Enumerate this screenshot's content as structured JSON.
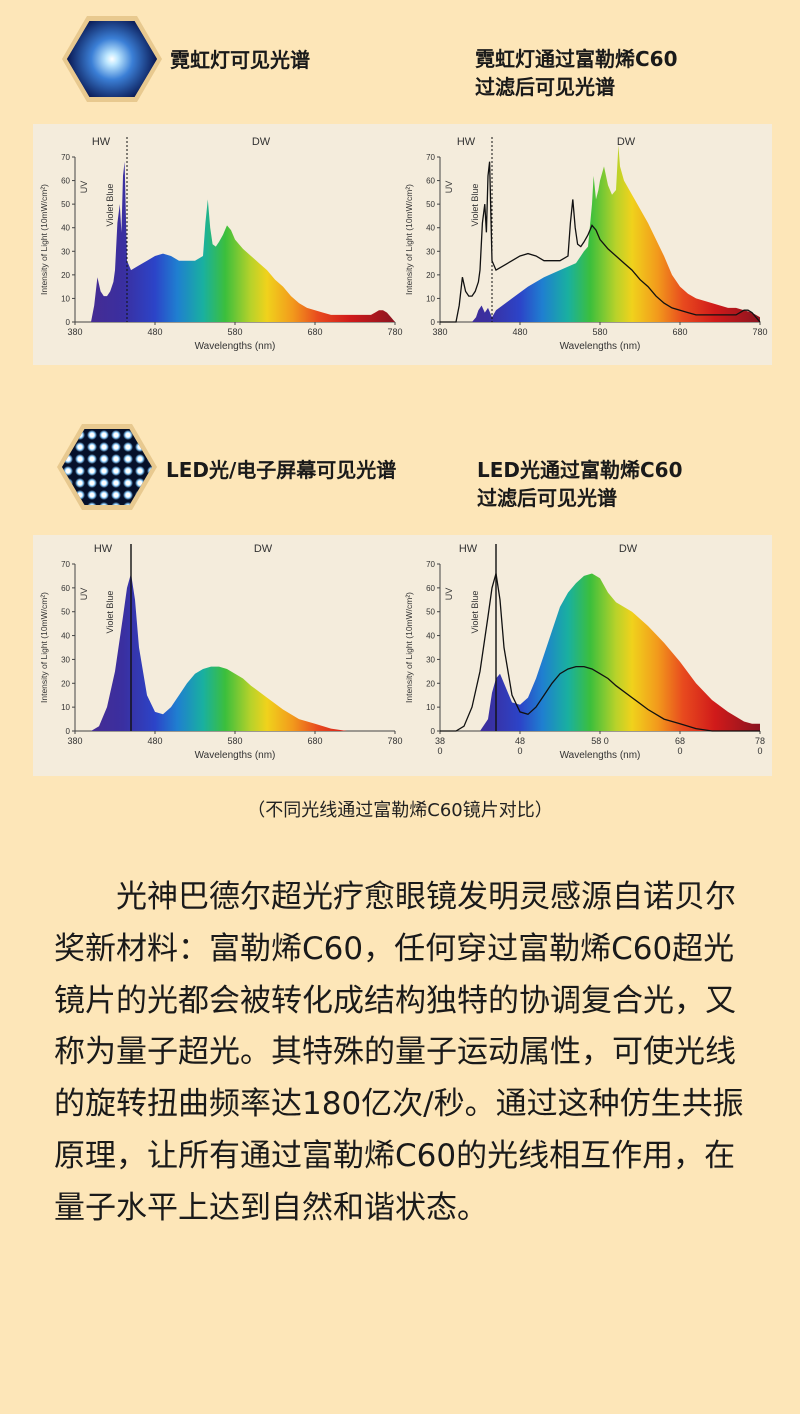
{
  "section1": {
    "left_label": "霓虹灯可见光谱",
    "right_label_line1": "霓虹灯通过富勒烯C60",
    "right_label_line2": "过滤后可见光谱"
  },
  "section2": {
    "left_label": "LED光/电子屏幕可见光谱",
    "right_label_line1": "LED光通过富勒烯C60",
    "right_label_line2": "过滤后可见光谱"
  },
  "caption": "（不同光线通过富勒烯C60镜片对比）",
  "paragraph": "光神巴德尔超光疗愈眼镜发明灵感源自诺贝尔奖新材料：富勒烯C60，任何穿过富勒烯C60超光镜片的光都会被转化成结构独特的协调复合光，又称为量子超光。其特殊的量子运动属性，可使光线的旋转扭曲频率达180亿次/秒。通过这种仿生共振原理，让所有通过富勒烯C60的光线相互作用，在量子水平上达到自然和谐状态。",
  "chart_data": [
    {
      "id": "neon",
      "type": "area",
      "ylabel": "Intensity of Light (10mW/cm²)",
      "xlabel": "Wavelengths (nm)",
      "xlim": [
        380,
        780
      ],
      "ylim": [
        0,
        70
      ],
      "xticks": [
        "380",
        "480",
        "580",
        "680",
        "780"
      ],
      "yticks": [
        "0",
        "10",
        "20",
        "30",
        "40",
        "50",
        "60",
        "70"
      ],
      "region_labels": [
        "HW",
        "DW"
      ],
      "band_labels": [
        "UV",
        "Violet Blue"
      ],
      "divider_x": 445,
      "series": [
        {
          "fill": true,
          "x": [
            380,
            400,
            404,
            408,
            412,
            416,
            420,
            424,
            428,
            430,
            433,
            436,
            438,
            440,
            442,
            445,
            450,
            460,
            470,
            480,
            490,
            500,
            510,
            520,
            530,
            540,
            543,
            546,
            549,
            552,
            556,
            560,
            565,
            570,
            575,
            580,
            585,
            590,
            600,
            610,
            620,
            630,
            640,
            650,
            660,
            670,
            680,
            690,
            700,
            710,
            720,
            730,
            740,
            750,
            755,
            760,
            765,
            770,
            775,
            780
          ],
          "y": [
            0,
            0,
            7,
            19,
            13,
            11,
            11,
            13,
            17,
            22,
            42,
            50,
            38,
            62,
            68,
            26,
            22,
            24,
            26,
            28,
            29,
            28,
            26,
            26,
            26,
            28,
            42,
            52,
            40,
            33,
            32,
            34,
            37,
            41,
            39,
            35,
            33,
            31,
            28,
            25,
            22,
            18,
            15,
            11,
            8,
            6,
            5,
            4,
            3,
            3,
            3,
            3,
            3,
            3,
            4,
            5,
            5,
            4,
            2,
            0
          ]
        }
      ]
    },
    {
      "id": "neon_c60",
      "type": "area",
      "ylabel": "Intensity of Light (10mW/cm²)",
      "xlabel": "Wavelengths (nm)",
      "xlim": [
        380,
        780
      ],
      "ylim": [
        0,
        70
      ],
      "xticks": [
        "380",
        "480",
        "580",
        "680",
        "780"
      ],
      "yticks": [
        "0",
        "10",
        "20",
        "30",
        "40",
        "50",
        "60",
        "70"
      ],
      "region_labels": [
        "HW",
        "DW"
      ],
      "band_labels": [
        "UV",
        "Violet Blue"
      ],
      "divider_x": 445,
      "series": [
        {
          "fill": true,
          "x": [
            380,
            420,
            425,
            428,
            432,
            436,
            440,
            445,
            450,
            470,
            490,
            510,
            530,
            550,
            560,
            565,
            570,
            572,
            575,
            578,
            580,
            585,
            590,
            595,
            600,
            603,
            605,
            610,
            620,
            630,
            640,
            650,
            660,
            670,
            680,
            690,
            700,
            710,
            720,
            730,
            740,
            750,
            760,
            770,
            780
          ],
          "y": [
            0,
            0,
            2,
            5,
            7,
            4,
            6,
            2,
            5,
            10,
            15,
            19,
            22,
            25,
            30,
            32,
            50,
            62,
            52,
            56,
            60,
            66,
            58,
            54,
            56,
            75,
            66,
            60,
            54,
            48,
            42,
            35,
            28,
            20,
            15,
            12,
            10,
            9,
            8,
            7,
            6,
            6,
            5,
            4,
            2
          ]
        },
        {
          "fill": false,
          "x": [
            380,
            400,
            404,
            408,
            412,
            416,
            420,
            424,
            428,
            430,
            433,
            436,
            438,
            440,
            442,
            445,
            450,
            460,
            470,
            480,
            490,
            500,
            510,
            520,
            530,
            540,
            543,
            546,
            549,
            552,
            556,
            560,
            565,
            570,
            575,
            580,
            585,
            590,
            600,
            610,
            620,
            630,
            640,
            650,
            660,
            670,
            680,
            690,
            700,
            710,
            720,
            730,
            740,
            750,
            755,
            760,
            765,
            770,
            775,
            780
          ],
          "y": [
            0,
            0,
            7,
            19,
            13,
            11,
            11,
            13,
            17,
            22,
            42,
            50,
            38,
            62,
            68,
            26,
            22,
            24,
            26,
            28,
            29,
            28,
            26,
            26,
            26,
            28,
            42,
            52,
            40,
            33,
            32,
            34,
            37,
            41,
            39,
            35,
            33,
            31,
            28,
            25,
            22,
            18,
            15,
            11,
            8,
            6,
            5,
            4,
            3,
            3,
            3,
            3,
            3,
            3,
            4,
            5,
            5,
            4,
            2,
            0
          ]
        }
      ]
    },
    {
      "id": "led",
      "type": "area",
      "ylabel": "Intensity of Light (10mW/cm²)",
      "xlabel": "Wavelengths (nm)",
      "xlim": [
        380,
        780
      ],
      "ylim": [
        0,
        70
      ],
      "xticks": [
        "380",
        "480",
        "580",
        "680",
        "780"
      ],
      "yticks": [
        "0",
        "10",
        "20",
        "30",
        "40",
        "50",
        "60",
        "70"
      ],
      "region_labels": [
        "HW",
        "DW"
      ],
      "band_labels": [
        "UV",
        "Violet Blue"
      ],
      "divider_x": 450,
      "series": [
        {
          "fill": true,
          "x": [
            380,
            400,
            410,
            420,
            430,
            440,
            445,
            450,
            455,
            460,
            470,
            480,
            490,
            500,
            510,
            520,
            530,
            540,
            550,
            560,
            570,
            580,
            590,
            600,
            620,
            640,
            660,
            680,
            700,
            720,
            740,
            760,
            780
          ],
          "y": [
            0,
            0,
            2,
            10,
            25,
            48,
            60,
            66,
            55,
            35,
            15,
            8,
            7,
            10,
            15,
            20,
            24,
            26,
            27,
            27,
            26,
            24,
            22,
            19,
            14,
            9,
            5,
            3,
            1,
            0,
            0,
            0,
            0
          ]
        }
      ]
    },
    {
      "id": "led_c60",
      "type": "area",
      "ylabel": "Intensity of Light (10mW/cm²)",
      "xlabel": "Wavelengths (nm)",
      "xlim": [
        380,
        780
      ],
      "ylim": [
        0,
        70
      ],
      "xticks": [
        "38\n0",
        "48\n0",
        "58 0",
        "68\n0",
        "78\n0"
      ],
      "yticks": [
        "0",
        "10",
        "20",
        "30",
        "40",
        "50",
        "60",
        "70"
      ],
      "region_labels": [
        "HW",
        "DW"
      ],
      "band_labels": [
        "UV",
        "Violet Blue"
      ],
      "divider_x": 450,
      "series": [
        {
          "fill": true,
          "x": [
            380,
            430,
            440,
            445,
            450,
            455,
            460,
            470,
            480,
            490,
            500,
            510,
            520,
            530,
            540,
            550,
            560,
            570,
            580,
            590,
            600,
            620,
            640,
            660,
            680,
            700,
            720,
            740,
            760,
            770,
            780
          ],
          "y": [
            0,
            0,
            5,
            16,
            22,
            24,
            20,
            12,
            11,
            14,
            22,
            32,
            42,
            52,
            58,
            62,
            65,
            66,
            64,
            58,
            54,
            50,
            44,
            37,
            29,
            20,
            13,
            8,
            4,
            3,
            3
          ]
        },
        {
          "fill": false,
          "x": [
            380,
            400,
            410,
            420,
            430,
            440,
            445,
            450,
            455,
            460,
            470,
            480,
            490,
            500,
            510,
            520,
            530,
            540,
            550,
            560,
            570,
            580,
            590,
            600,
            620,
            640,
            660,
            680,
            700,
            720,
            740,
            760,
            780
          ],
          "y": [
            0,
            0,
            2,
            10,
            25,
            48,
            60,
            66,
            55,
            35,
            15,
            8,
            7,
            10,
            15,
            20,
            24,
            26,
            27,
            27,
            26,
            24,
            22,
            19,
            14,
            9,
            5,
            3,
            1,
            0,
            0,
            0,
            0
          ]
        }
      ]
    }
  ]
}
